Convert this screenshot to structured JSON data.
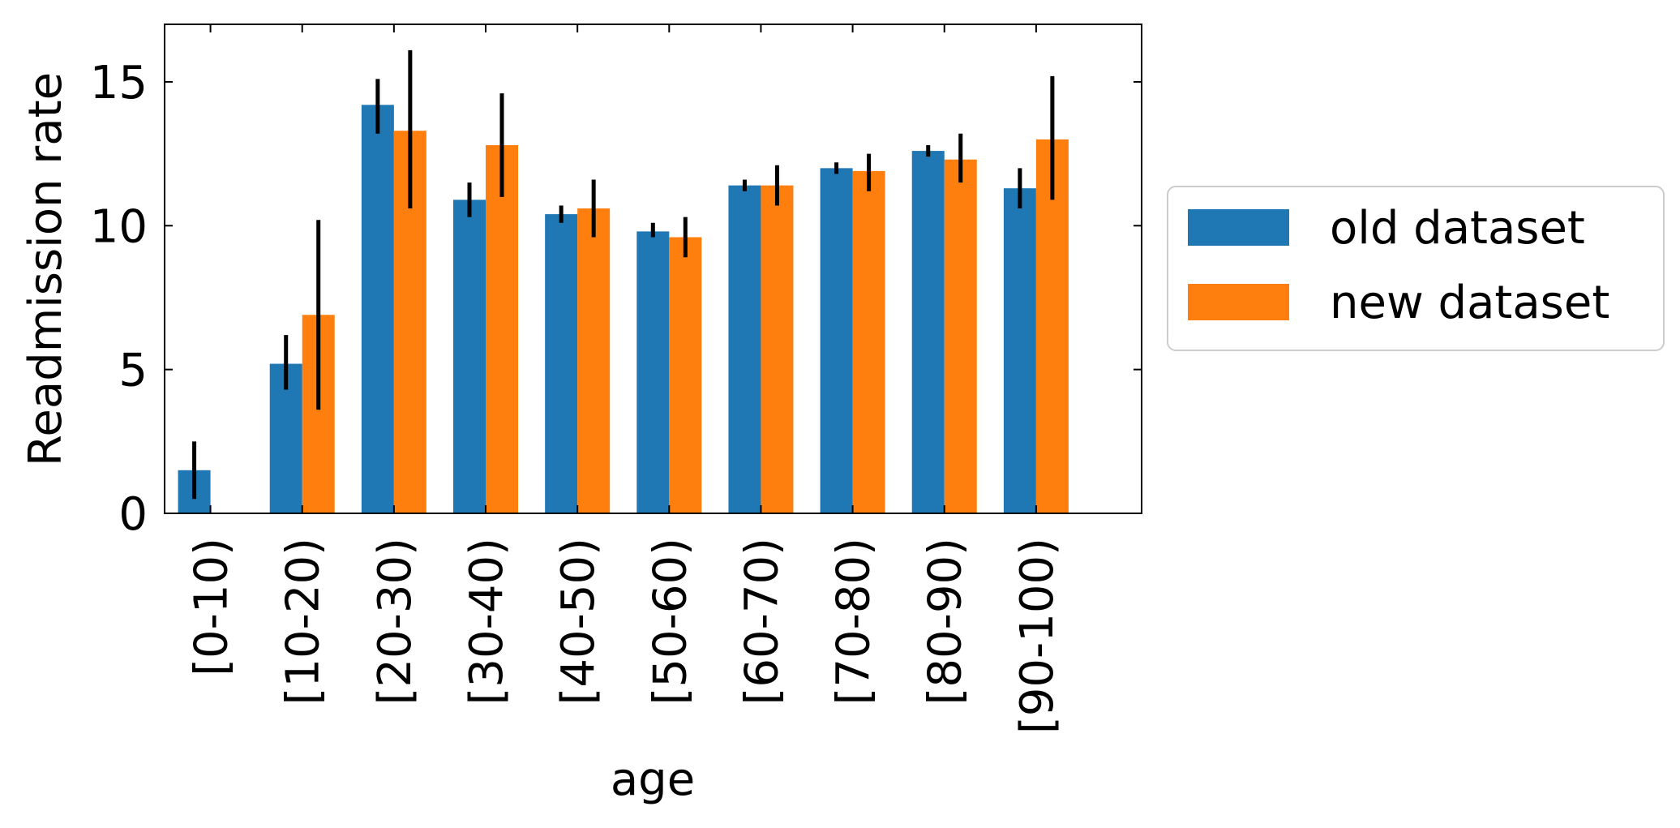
{
  "chart_data": {
    "type": "bar",
    "title": "",
    "xlabel": "age",
    "ylabel": "Readmission rate",
    "categories": [
      "[0-10)",
      "[10-20)",
      "[20-30)",
      "[30-40)",
      "[40-50)",
      "[50-60)",
      "[60-70)",
      "[70-80)",
      "[80-90)",
      "[90-100)"
    ],
    "series": [
      {
        "name": "old dataset",
        "color": "#1f77b4",
        "values": [
          1.5,
          5.2,
          14.2,
          10.9,
          10.4,
          9.8,
          11.4,
          12.0,
          12.6,
          11.3
        ],
        "err_low": [
          0.5,
          4.3,
          13.2,
          10.3,
          10.1,
          9.6,
          11.2,
          11.8,
          12.4,
          10.6
        ],
        "err_high": [
          2.5,
          6.2,
          15.1,
          11.5,
          10.7,
          10.1,
          11.6,
          12.2,
          12.8,
          12.0
        ]
      },
      {
        "name": "new dataset",
        "color": "#ff7f0e",
        "values": [
          null,
          6.9,
          13.3,
          12.8,
          10.6,
          9.6,
          11.4,
          11.9,
          12.3,
          13.0
        ],
        "err_low": [
          null,
          3.6,
          10.6,
          11.0,
          9.6,
          8.9,
          10.7,
          11.2,
          11.5,
          10.9
        ],
        "err_high": [
          null,
          10.2,
          16.1,
          14.6,
          11.6,
          10.3,
          12.1,
          12.5,
          13.2,
          15.2
        ]
      }
    ],
    "ylim": [
      0,
      17
    ],
    "yticks": [
      "0",
      "5",
      "10",
      "15"
    ],
    "grid": false,
    "legend_placement": "outside-right"
  }
}
